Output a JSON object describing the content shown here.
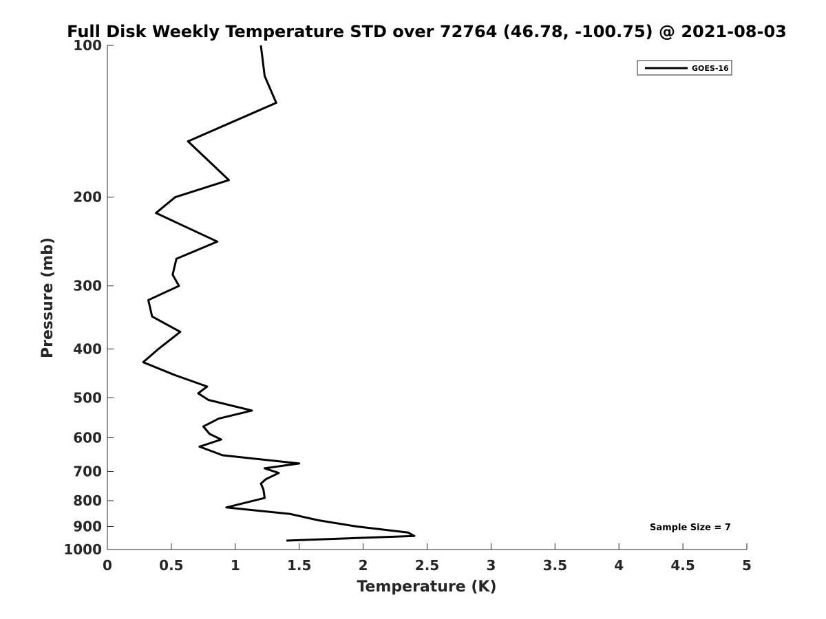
{
  "chart_data": {
    "type": "line",
    "title": "Full Disk Weekly Temperature STD over 72764 (46.78, -100.75) @ 2021-08-03",
    "xlabel": "Temperature (K)",
    "ylabel": "Pressure (mb)",
    "xlim": [
      0,
      5
    ],
    "ylim": [
      100,
      1000
    ],
    "y_scale": "log",
    "y_reversed": true,
    "x_ticks": [
      "0",
      "0.5",
      "1",
      "1.5",
      "2",
      "2.5",
      "3",
      "3.5",
      "4",
      "4.5",
      "5"
    ],
    "y_ticks": [
      "100",
      "200",
      "300",
      "400",
      "500",
      "600",
      "700",
      "800",
      "900",
      "1000"
    ],
    "grid": false,
    "legend_position": "top-right",
    "annotation": "Sample Size = 7",
    "line_color": "#000000",
    "series": [
      {
        "name": "GOES-16",
        "points": [
          [
            1.2,
            100
          ],
          [
            1.23,
            115
          ],
          [
            1.32,
            130
          ],
          [
            0.63,
            155
          ],
          [
            0.95,
            185
          ],
          [
            0.53,
            200
          ],
          [
            0.38,
            215
          ],
          [
            0.86,
            245
          ],
          [
            0.54,
            265
          ],
          [
            0.51,
            285
          ],
          [
            0.56,
            300
          ],
          [
            0.32,
            320
          ],
          [
            0.35,
            345
          ],
          [
            0.57,
            370
          ],
          [
            0.4,
            400
          ],
          [
            0.28,
            425
          ],
          [
            0.52,
            450
          ],
          [
            0.78,
            475
          ],
          [
            0.71,
            490
          ],
          [
            0.79,
            505
          ],
          [
            1.13,
            530
          ],
          [
            0.87,
            550
          ],
          [
            0.75,
            570
          ],
          [
            0.8,
            590
          ],
          [
            0.89,
            605
          ],
          [
            0.72,
            625
          ],
          [
            0.9,
            650
          ],
          [
            1.5,
            675
          ],
          [
            1.23,
            690
          ],
          [
            1.34,
            705
          ],
          [
            1.24,
            725
          ],
          [
            1.2,
            740
          ],
          [
            1.22,
            760
          ],
          [
            1.23,
            790
          ],
          [
            0.93,
            825
          ],
          [
            1.43,
            850
          ],
          [
            1.65,
            875
          ],
          [
            1.95,
            900
          ],
          [
            2.35,
            925
          ],
          [
            2.4,
            940
          ],
          [
            1.4,
            960
          ]
        ]
      }
    ]
  }
}
